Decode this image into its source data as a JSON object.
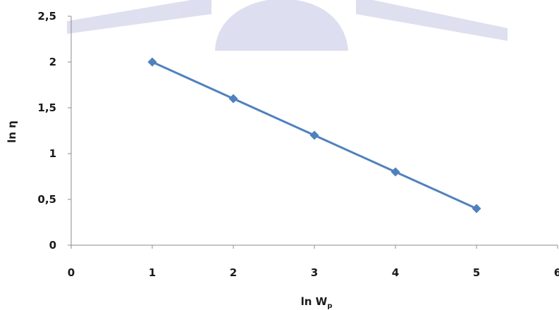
{
  "chart_data": {
    "type": "line",
    "title": "",
    "xlabel": "ln W",
    "xlabel_subscript": "p",
    "ylabel": "ln η",
    "xlim": [
      0,
      6
    ],
    "ylim": [
      0,
      2.5
    ],
    "x_ticks": [
      "0",
      "1",
      "2",
      "3",
      "4",
      "5",
      "6"
    ],
    "y_ticks": [
      "0",
      "0,5",
      "1",
      "1,5",
      "2",
      "2,5"
    ],
    "grid": false,
    "legend": "none",
    "series": [
      {
        "color": "#4f81bd",
        "marker": "diamond",
        "x": [
          1,
          2,
          3,
          4,
          5
        ],
        "y": [
          2.0,
          1.6,
          1.2,
          0.8,
          0.4
        ]
      }
    ]
  },
  "watermark": {
    "color": "#6a6fb8"
  }
}
